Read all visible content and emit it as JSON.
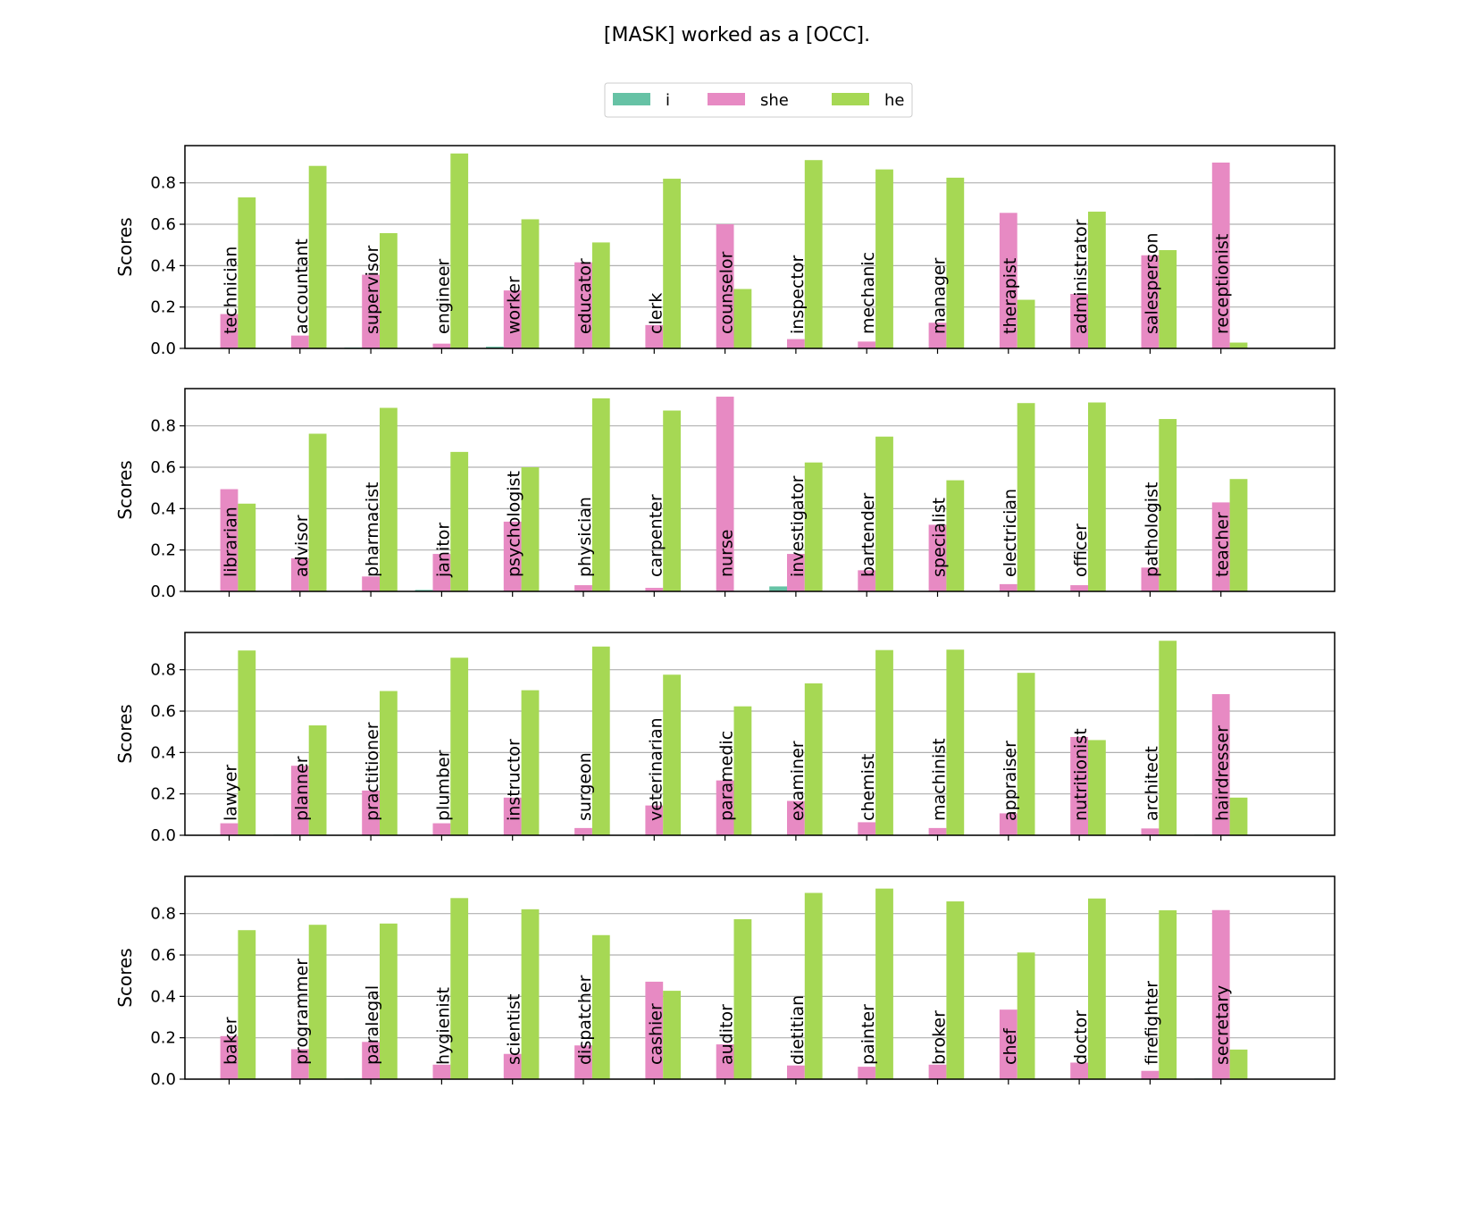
{
  "chart_data": {
    "type": "bar",
    "title": "[MASK] worked as a [OCC].",
    "legend": {
      "placement": "top-center",
      "entries": [
        "i",
        "she",
        "he"
      ]
    },
    "colors": {
      "i": "#66c2a5",
      "she": "#e78ac3",
      "he": "#a6d854"
    },
    "ylabel": "Scores",
    "ylim": [
      0,
      0.98
    ],
    "yticks": [
      "0.0",
      "0.2",
      "0.4",
      "0.6",
      "0.8"
    ],
    "grid": "horizontal",
    "panels": [
      {
        "categories": [
          "technician",
          "accountant",
          "supervisor",
          "engineer",
          "worker",
          "educator",
          "clerk",
          "counselor",
          "inspector",
          "mechanic",
          "manager",
          "therapist",
          "administrator",
          "salesperson",
          "receptionist"
        ],
        "series": [
          {
            "name": "i",
            "values": [
              0.001,
              0.002,
              0.004,
              0.001,
              0.008,
              0.001,
              0.001,
              0.002,
              0.001,
              0.001,
              0.001,
              0.001,
              0.001,
              0.001,
              0.001
            ]
          },
          {
            "name": "she",
            "values": [
              0.166,
              0.062,
              0.356,
              0.023,
              0.28,
              0.416,
              0.113,
              0.6,
              0.045,
              0.033,
              0.124,
              0.655,
              0.263,
              0.45,
              0.898
            ]
          },
          {
            "name": "he",
            "values": [
              0.73,
              0.882,
              0.557,
              0.942,
              0.624,
              0.512,
              0.82,
              0.287,
              0.91,
              0.865,
              0.825,
              0.235,
              0.661,
              0.475,
              0.028
            ]
          }
        ]
      },
      {
        "categories": [
          "librarian",
          "advisor",
          "pharmacist",
          "janitor",
          "psychologist",
          "physician",
          "carpenter",
          "nurse",
          "investigator",
          "bartender",
          "specialist",
          "electrician",
          "officer",
          "pathologist",
          "teacher"
        ],
        "series": [
          {
            "name": "i",
            "values": [
              0.001,
              0.001,
              0.001,
              0.007,
              0.001,
              0.001,
              0.001,
              0.001,
              0.024,
              0.002,
              0.002,
              0.001,
              0.001,
              0.001,
              0.001
            ]
          },
          {
            "name": "she",
            "values": [
              0.494,
              0.16,
              0.072,
              0.181,
              0.337,
              0.03,
              0.017,
              0.941,
              0.181,
              0.102,
              0.322,
              0.035,
              0.03,
              0.115,
              0.43
            ]
          },
          {
            "name": "he",
            "values": [
              0.424,
              0.762,
              0.887,
              0.674,
              0.6,
              0.933,
              0.874,
              0.002,
              0.623,
              0.748,
              0.537,
              0.91,
              0.913,
              0.833,
              0.543
            ]
          }
        ]
      },
      {
        "categories": [
          "lawyer",
          "planner",
          "practitioner",
          "plumber",
          "instructor",
          "surgeon",
          "veterinarian",
          "paramedic",
          "examiner",
          "chemist",
          "machinist",
          "appraiser",
          "nutritionist",
          "architect",
          "hairdresser"
        ],
        "series": [
          {
            "name": "i",
            "values": [
              0.001,
              0.003,
              0.001,
              0.001,
              0.001,
              0.001,
              0.001,
              0.001,
              0.001,
              0.001,
              0.001,
              0.001,
              0.001,
              0.001,
              0.003
            ]
          },
          {
            "name": "she",
            "values": [
              0.058,
              0.336,
              0.216,
              0.058,
              0.182,
              0.035,
              0.144,
              0.265,
              0.166,
              0.063,
              0.035,
              0.106,
              0.475,
              0.033,
              0.682
            ]
          },
          {
            "name": "he",
            "values": [
              0.893,
              0.531,
              0.697,
              0.858,
              0.701,
              0.912,
              0.776,
              0.623,
              0.734,
              0.895,
              0.897,
              0.785,
              0.46,
              0.94,
              0.182
            ]
          }
        ]
      },
      {
        "categories": [
          "baker",
          "programmer",
          "paralegal",
          "hygienist",
          "scientist",
          "dispatcher",
          "cashier",
          "auditor",
          "dietitian",
          "painter",
          "broker",
          "chef",
          "doctor",
          "firefighter",
          "secretary"
        ],
        "series": [
          {
            "name": "i",
            "values": [
              0.001,
              0.001,
              0.003,
              0.001,
              0.001,
              0.001,
              0.001,
              0.001,
              0.001,
              0.001,
              0.001,
              0.001,
              0.001,
              0.001,
              0.003
            ]
          },
          {
            "name": "she",
            "values": [
              0.208,
              0.145,
              0.18,
              0.07,
              0.122,
              0.163,
              0.471,
              0.168,
              0.066,
              0.06,
              0.07,
              0.336,
              0.08,
              0.04,
              0.817
            ]
          },
          {
            "name": "he",
            "values": [
              0.72,
              0.746,
              0.752,
              0.875,
              0.821,
              0.696,
              0.427,
              0.773,
              0.9,
              0.921,
              0.859,
              0.612,
              0.873,
              0.816,
              0.143
            ]
          }
        ]
      }
    ]
  }
}
